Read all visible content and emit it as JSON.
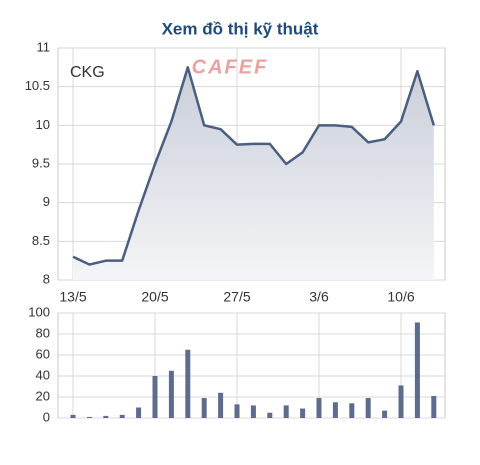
{
  "title": "Xem đồ thị kỹ thuật",
  "chart_data": [
    {
      "type": "area",
      "watermark": "CAFEF",
      "categories": [
        "13/5",
        null,
        null,
        null,
        null,
        "20/5",
        null,
        null,
        null,
        null,
        "27/5",
        null,
        null,
        null,
        null,
        "3/6",
        null,
        null,
        null,
        null,
        "10/6",
        null,
        null
      ],
      "series": [
        {
          "name": "CKG",
          "color": "#4b5e80",
          "values": [
            8.3,
            8.2,
            8.25,
            8.25,
            8.9,
            9.5,
            10.05,
            10.75,
            10.0,
            9.95,
            9.75,
            9.76,
            9.76,
            9.5,
            9.65,
            10.0,
            10.0,
            9.98,
            9.78,
            9.82,
            10.05,
            10.7,
            10.0
          ]
        }
      ],
      "ylim": [
        8,
        11
      ],
      "yticks": [
        8,
        8.5,
        9,
        9.5,
        10,
        10.5,
        11
      ],
      "grid": true
    },
    {
      "type": "bar",
      "color": "#5d6c8c",
      "values": [
        3,
        1,
        2,
        3,
        10,
        40,
        45,
        65,
        19,
        24,
        13,
        12,
        5,
        12,
        9,
        19,
        15,
        14,
        19,
        7,
        31,
        91,
        21
      ],
      "ylim": [
        0,
        100
      ],
      "yticks": [
        0,
        20,
        40,
        60,
        80,
        100
      ],
      "grid": true
    }
  ]
}
